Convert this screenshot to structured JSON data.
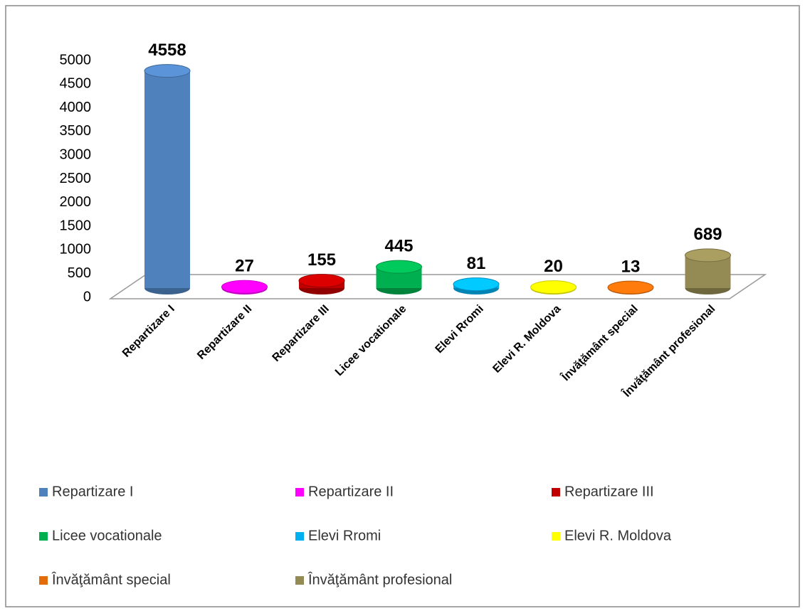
{
  "chart_data": {
    "type": "bar",
    "categories": [
      "Repartizare I",
      "Repartizare II",
      "Repartizare III",
      "Licee vocationale",
      "Elevi Rromi",
      "Elevi R. Moldova",
      "Învăţământ special",
      "Învăţământ profesional"
    ],
    "values": [
      4558,
      27,
      155,
      445,
      81,
      20,
      13,
      689
    ],
    "colors": [
      "#4f81bd",
      "#ff00ff",
      "#c00000",
      "#00b050",
      "#00b0f0",
      "#ffff00",
      "#e36c0a",
      "#948a54"
    ],
    "ylim": [
      0,
      5000
    ],
    "yticks": [
      0,
      500,
      1000,
      1500,
      2000,
      2500,
      3000,
      3500,
      4000,
      4500,
      5000
    ],
    "grid": false,
    "legend": "bottom"
  }
}
